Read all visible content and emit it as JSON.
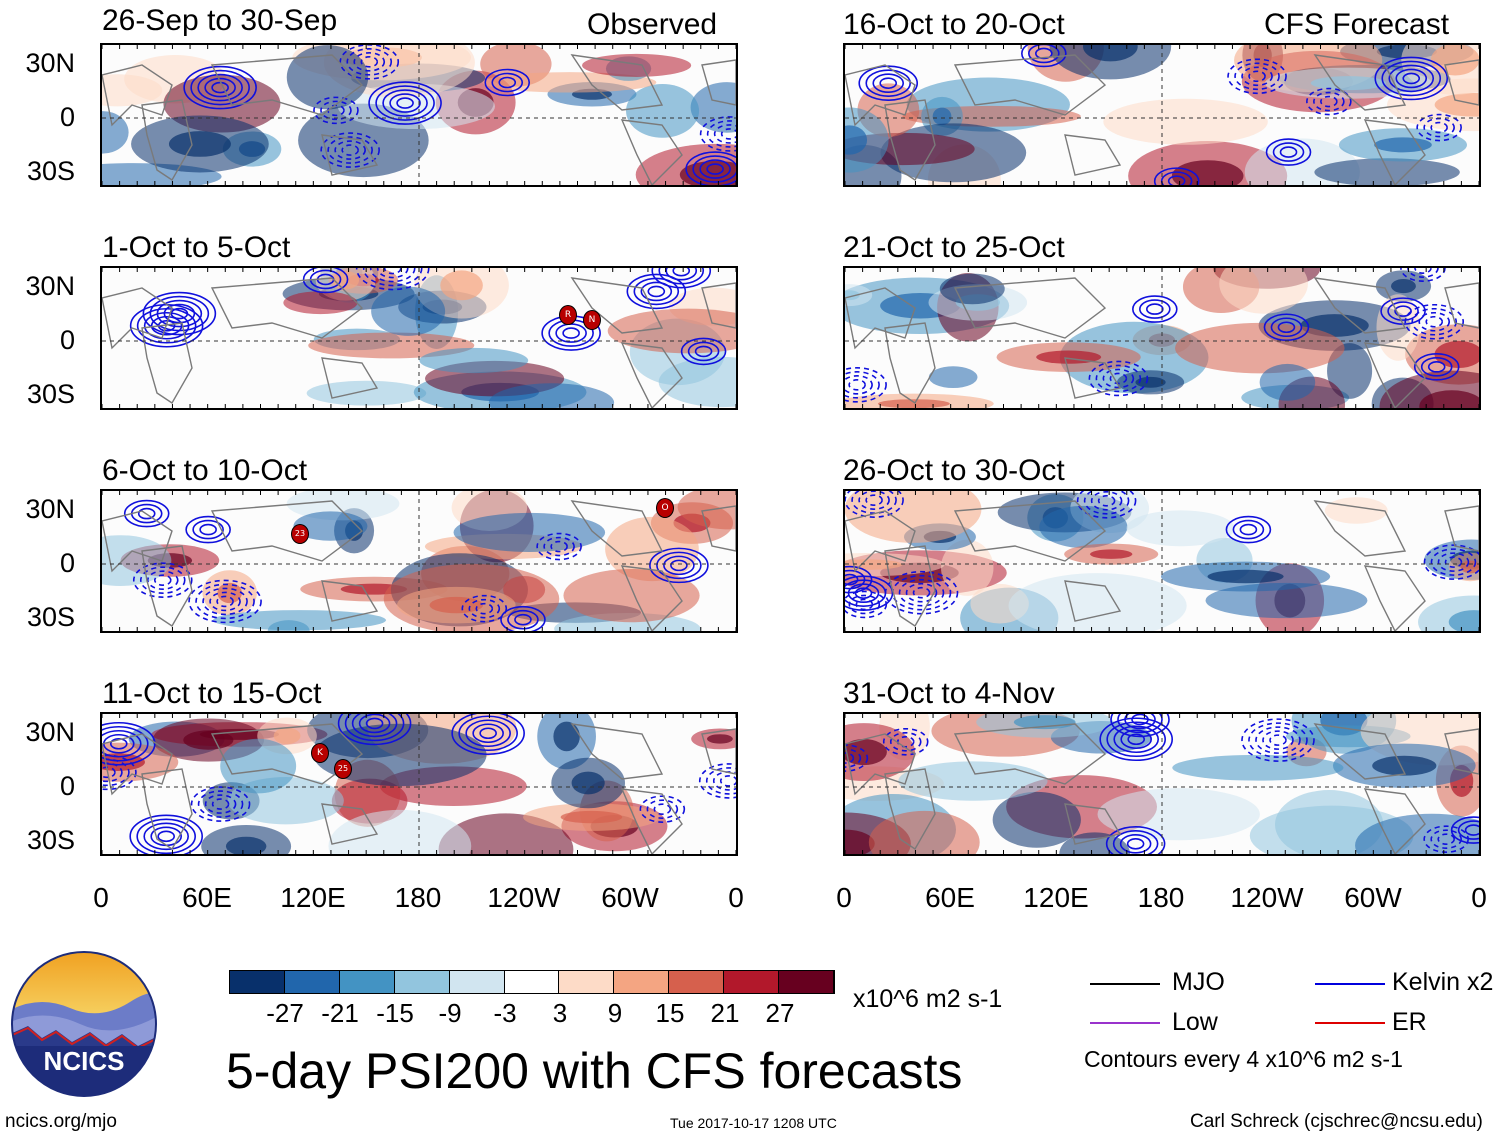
{
  "observed_label": "Observed",
  "forecast_label": "CFS Forecast",
  "panels": {
    "p0": "26-Sep to 30-Sep",
    "p1": "1-Oct to 5-Oct",
    "p2": "6-Oct to 10-Oct",
    "p3": "11-Oct to 15-Oct",
    "p4": "16-Oct to 20-Oct",
    "p5": "21-Oct to 25-Oct",
    "p6": "26-Oct to 30-Oct",
    "p7": "31-Oct to 4-Nov"
  },
  "lat_labels": {
    "n": "30N",
    "eq": "0",
    "s": "30S"
  },
  "lon_labels": {
    "l0": "0",
    "l1": "60E",
    "l2": "120E",
    "l3": "180",
    "l4": "120W",
    "l5": "60W",
    "l6": "0"
  },
  "storm_markers": {
    "p1a": "R",
    "p1b": "N",
    "p2a": "23",
    "p2b": "O",
    "p3a": "K",
    "p3b": "25"
  },
  "colorbar": {
    "colors": [
      "#08306b",
      "#2166ac",
      "#4393c3",
      "#92c5de",
      "#d1e5f0",
      "#ffffff",
      "#fddbc7",
      "#f4a582",
      "#d6604d",
      "#b2182b",
      "#67001f"
    ],
    "ticks": {
      "t0": "-27",
      "t1": "-21",
      "t2": "-15",
      "t3": "-9",
      "t4": "-3",
      "t5": "3",
      "t6": "9",
      "t7": "15",
      "t8": "21",
      "t9": "27"
    },
    "units": "x10^6 m2 s-1"
  },
  "legend": {
    "mjo": "MJO",
    "low": "Low",
    "kelvin": "Kelvin x2",
    "er": "ER",
    "mjo_color": "#000000",
    "low_color": "#9933cc",
    "kelvin_color": "#0000dd",
    "er_color": "#dd0000",
    "contours_note": "Contours every 4 x10^6 m2 s-1"
  },
  "logo_text": "NCICS",
  "main_title": "5-day PSI200 with CFS forecasts",
  "footer": {
    "url": "ncics.org/mjo",
    "timestamp": "Tue 2017-10-17 1208 UTC",
    "author": "Carl Schreck (cjschrec@ncsu.edu)"
  }
}
